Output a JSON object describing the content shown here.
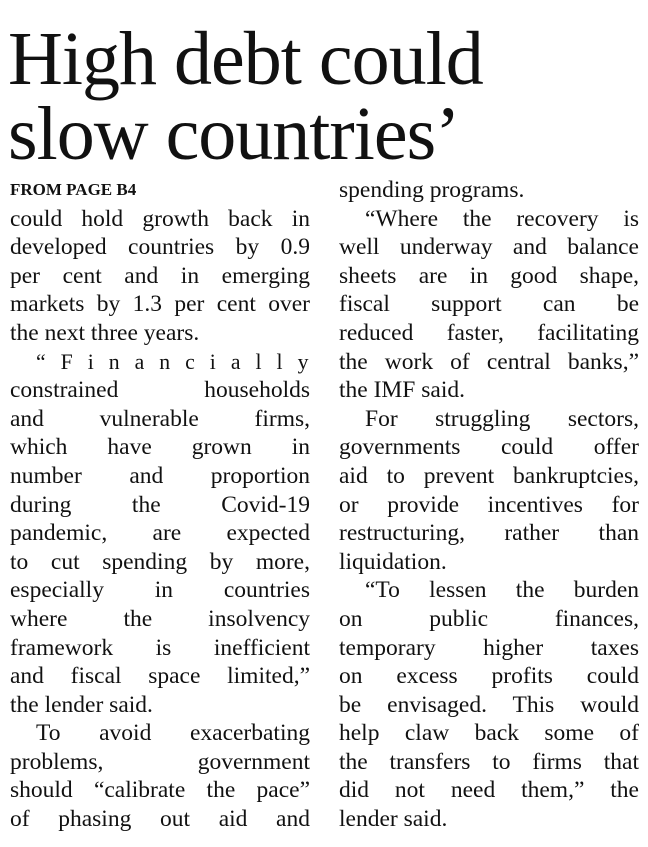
{
  "headline": {
    "lines": [
      "High debt could",
      "slow countries’"
    ]
  },
  "columns": [
    {
      "byline": "FROM PAGE B4",
      "paragraphs": [
        {
          "lines": [
            "could hold growth back in",
            "developed countries by 0.9",
            "per cent and in emerging",
            "markets by 1.3 per cent over",
            "the next three years."
          ]
        },
        {
          "lines": [
            "“Financially",
            "constrained households",
            "and vulnerable firms,",
            "which have grown in",
            "number and proportion",
            "during the Covid-19",
            "pandemic, are expected",
            "to cut spending by more,",
            "especially in countries",
            "where the insolvency",
            "framework is inefficient",
            "and fiscal space limited,”",
            "the lender said."
          ]
        },
        {
          "lines": [
            "To avoid exacerbating",
            "problems, government",
            "should “calibrate the pace”",
            "of phasing out aid and"
          ]
        }
      ]
    },
    {
      "paragraphs": [
        {
          "lines": [
            "spending programs."
          ]
        },
        {
          "lines": [
            "“Where the recovery is",
            "well underway and balance",
            "sheets are in good shape,",
            "fiscal support can be",
            "reduced faster, facilitating",
            "the work of central banks,”",
            "the IMF said."
          ]
        },
        {
          "lines": [
            "For struggling sectors,",
            "governments could offer",
            "aid to prevent bankruptcies,",
            "or provide incentives for",
            "restructuring, rather than",
            "liquidation."
          ]
        },
        {
          "lines": [
            "“To lessen the burden",
            "on public finances,",
            "temporary higher taxes",
            "on excess profits could",
            "be envisaged. This would",
            "help claw back some of",
            "the transfers to firms that",
            "did not need them,” the",
            "lender said."
          ]
        }
      ]
    }
  ]
}
